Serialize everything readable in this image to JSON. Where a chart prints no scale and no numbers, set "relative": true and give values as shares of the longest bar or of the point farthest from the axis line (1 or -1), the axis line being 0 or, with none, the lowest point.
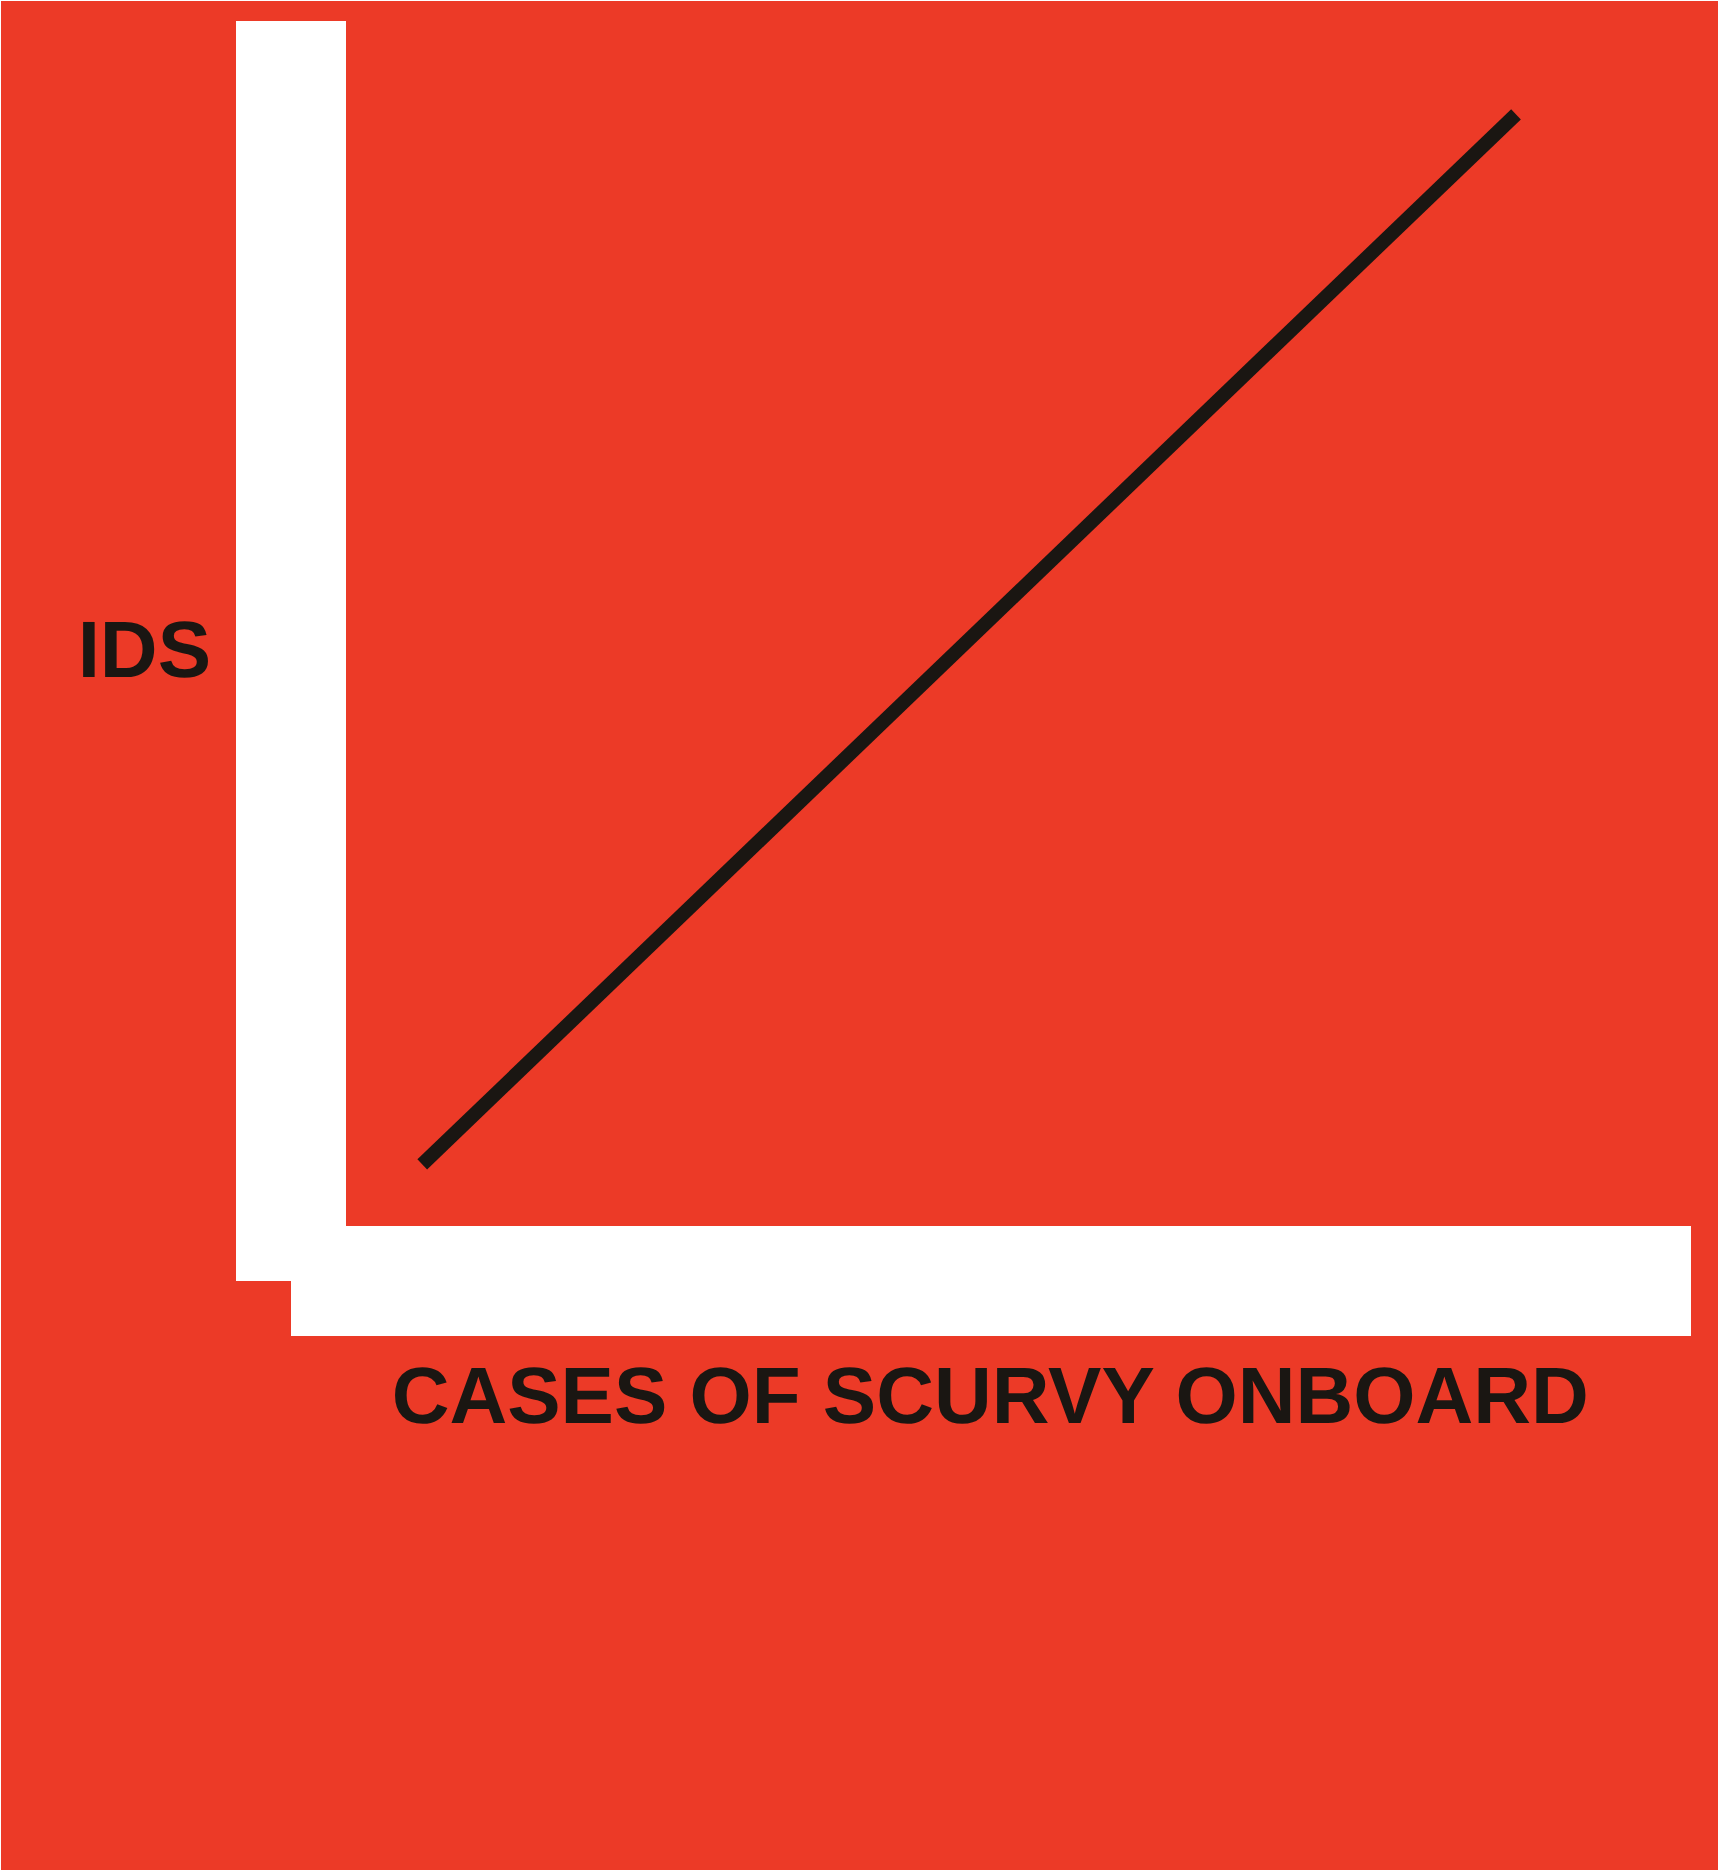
{
  "chart_data": {
    "type": "line",
    "xlabel": "CASES OF SCURVY ONBOARD",
    "ylabel": "IDS",
    "relative": true,
    "categories": [
      null,
      null
    ],
    "series": [
      {
        "color": "#1a1612",
        "values": [
          0.1,
          1
        ]
      }
    ]
  }
}
